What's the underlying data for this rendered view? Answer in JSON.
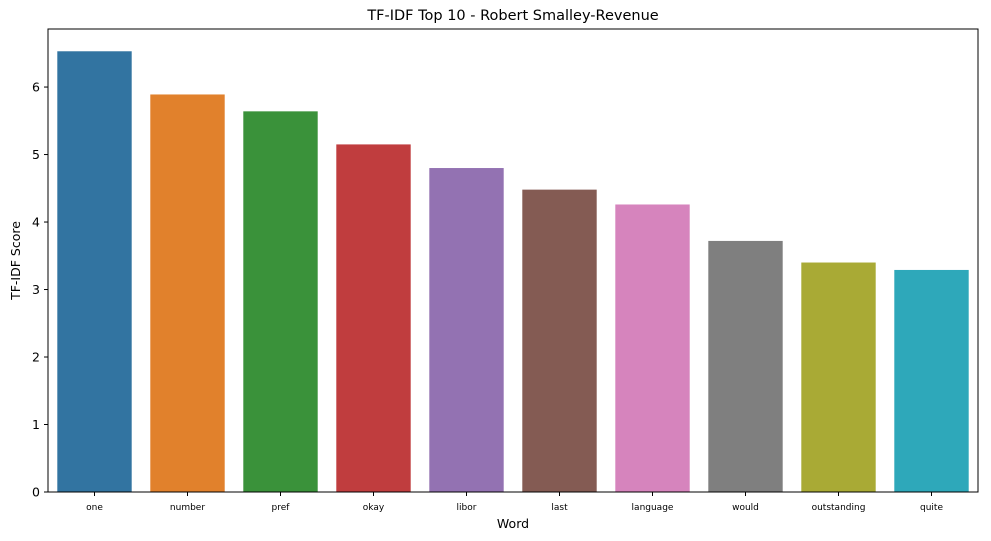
{
  "chart_data": {
    "type": "bar",
    "title": "TF-IDF Top 10 - Robert Smalley-Revenue",
    "xlabel": "Word",
    "ylabel": "TF-IDF Score",
    "categories": [
      "one",
      "number",
      "pref",
      "okay",
      "libor",
      "last",
      "language",
      "would",
      "outstanding",
      "quite"
    ],
    "values": [
      6.53,
      5.89,
      5.64,
      5.15,
      4.8,
      4.48,
      4.26,
      3.72,
      3.4,
      3.29
    ],
    "colors": [
      "#3274a1",
      "#e1812c",
      "#3a923a",
      "#c03d3e",
      "#9372b2",
      "#845b53",
      "#d684bd",
      "#7f7f7f",
      "#a9aa35",
      "#2ea8ba"
    ],
    "ylim": [
      0,
      6.86
    ],
    "yticks": [
      0,
      1,
      2,
      3,
      4,
      5,
      6
    ],
    "grid": false,
    "legend": "none"
  }
}
